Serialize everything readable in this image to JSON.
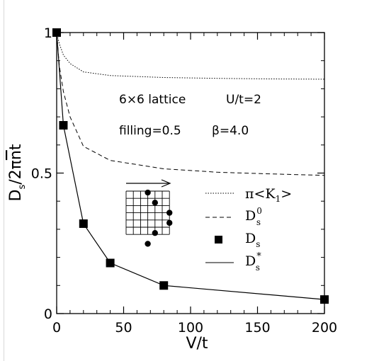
{
  "chart_data": {
    "type": "line",
    "xlabel": "V/t",
    "ylabel": "D_s/2π n̄ t",
    "xlim": [
      0,
      200
    ],
    "ylim": [
      0,
      1
    ],
    "x_ticks": [
      0,
      50,
      100,
      150,
      200
    ],
    "x_tick_labels": [
      "0",
      "50",
      "100",
      "150",
      "200"
    ],
    "y_ticks": [
      0,
      0.5,
      1
    ],
    "y_tick_labels": [
      "0",
      "0.5",
      "1"
    ],
    "annotations": [
      "6×6 lattice",
      "U/t=2",
      "filling=0.5",
      "β=4.0"
    ],
    "legend_position": "lower-right",
    "series": [
      {
        "name": "π<K₁>",
        "style": "dotted",
        "x": [
          0,
          2,
          5,
          10,
          20,
          40,
          80,
          120,
          160,
          200
        ],
        "y": [
          1.0,
          0.96,
          0.92,
          0.89,
          0.86,
          0.847,
          0.84,
          0.837,
          0.835,
          0.834
        ]
      },
      {
        "name": "D⁰ₛ",
        "style": "dashed",
        "x": [
          0,
          2,
          5,
          10,
          20,
          40,
          80,
          120,
          160,
          200
        ],
        "y": [
          1.0,
          0.88,
          0.79,
          0.7,
          0.595,
          0.545,
          0.515,
          0.503,
          0.497,
          0.492
        ]
      },
      {
        "name": "Dₛ",
        "style": "markers",
        "x": [
          0,
          5,
          20,
          40,
          80,
          200
        ],
        "y": [
          1.0,
          0.67,
          0.32,
          0.18,
          0.1,
          0.05
        ]
      },
      {
        "name": "D*ₛ",
        "style": "solid",
        "x": [
          0,
          5,
          20,
          40,
          80,
          200
        ],
        "y": [
          1.0,
          0.67,
          0.32,
          0.18,
          0.1,
          0.05
        ]
      }
    ]
  }
}
